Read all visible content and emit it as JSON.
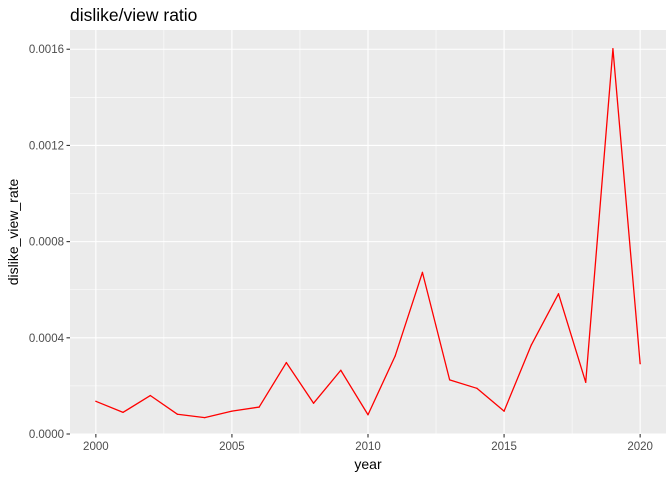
{
  "chart_data": {
    "type": "line",
    "title": "dislike/view ratio",
    "xlabel": "year",
    "ylabel": "dislike_view_rate",
    "xlim": [
      1999.05,
      2020.95
    ],
    "ylim": [
      0,
      0.00168
    ],
    "x_ticks": [
      2000,
      2005,
      2010,
      2015,
      2020
    ],
    "x_tick_labels": [
      "2000",
      "2005",
      "2010",
      "2015",
      "2020"
    ],
    "y_ticks": [
      0,
      0.0004,
      0.0008,
      0.0012,
      0.0016
    ],
    "y_tick_labels": [
      "0.0000",
      "0.0004",
      "0.0008",
      "0.0012",
      "0.0016"
    ],
    "grid": true,
    "background": "#ebebeb",
    "gridline_color": "#ffffff",
    "series": [
      {
        "color": "#ff0000",
        "x": [
          2000,
          2001,
          2002,
          2003,
          2004,
          2005,
          2006,
          2007,
          2008,
          2009,
          2010,
          2011,
          2012,
          2013,
          2014,
          2015,
          2016,
          2017,
          2018,
          2019,
          2020
        ],
        "y": [
          0.000136,
          9e-05,
          0.00016,
          8.2e-05,
          6.8e-05,
          9.5e-05,
          0.000112,
          0.000297,
          0.000128,
          0.000265,
          8e-05,
          0.000325,
          0.000672,
          0.000225,
          0.00019,
          9.5e-05,
          0.00037,
          0.000583,
          0.000215,
          0.001602,
          0.000292
        ]
      }
    ]
  }
}
